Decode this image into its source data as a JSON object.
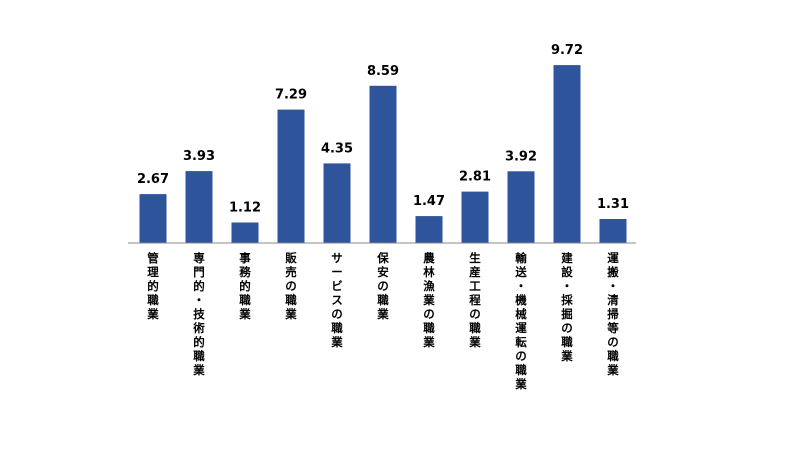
{
  "chart_data": {
    "type": "bar",
    "title": "",
    "xlabel": "",
    "ylabel": "",
    "ylim": [
      0,
      10.5
    ],
    "grid": false,
    "legend": "none",
    "bar_color": "#2E559B",
    "categories": [
      "管理的職業",
      "専門的・技術的職業",
      "事務的職業",
      "販売の職業",
      "サービスの職業",
      "保安の職業",
      "農林漁業の職業",
      "生産工程の職業",
      "輸送・機械運転の職業",
      "建設・採掘の職業",
      "運搬・清掃等の職業"
    ],
    "values": [
      2.67,
      3.93,
      1.12,
      7.29,
      4.35,
      8.59,
      1.47,
      2.81,
      3.92,
      9.72,
      1.31
    ],
    "data_labels": [
      "2.67",
      "3.93",
      "1.12",
      "7.29",
      "4.35",
      "8.59",
      "1.47",
      "2.81",
      "3.92",
      "9.72",
      "1.31"
    ]
  }
}
